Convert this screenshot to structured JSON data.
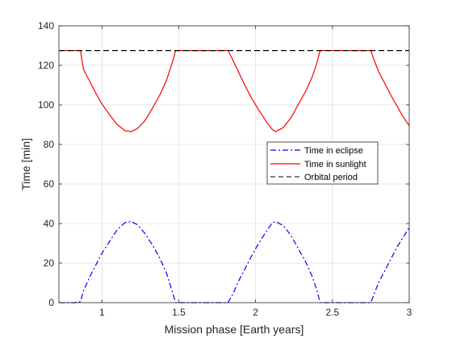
{
  "chart_data": {
    "type": "line",
    "title": "",
    "xlabel": "Mission phase [Earth years]",
    "ylabel": "Time [min]",
    "xlim": [
      0.72,
      3.0
    ],
    "ylim": [
      0,
      140
    ],
    "xticks": [
      "1",
      "1.5",
      "2",
      "2.5",
      "3"
    ],
    "yticks": [
      "0",
      "20",
      "40",
      "60",
      "80",
      "100",
      "120",
      "140"
    ],
    "grid": true,
    "legend_position": "right-middle",
    "series": [
      {
        "name": "Time in eclipse",
        "color": "#0000ff",
        "style": "dash-dot",
        "points": [
          [
            0.72,
            0
          ],
          [
            0.82,
            0
          ],
          [
            0.86,
            0.5
          ],
          [
            0.88,
            6
          ],
          [
            0.92,
            13
          ],
          [
            0.96,
            19
          ],
          [
            1.0,
            25
          ],
          [
            1.05,
            31
          ],
          [
            1.1,
            37
          ],
          [
            1.15,
            40.5
          ],
          [
            1.19,
            41
          ],
          [
            1.23,
            39.5
          ],
          [
            1.28,
            35
          ],
          [
            1.33,
            29
          ],
          [
            1.38,
            22
          ],
          [
            1.42,
            15
          ],
          [
            1.46,
            5
          ],
          [
            1.48,
            0
          ],
          [
            1.5,
            0
          ],
          [
            1.7,
            0
          ],
          [
            1.82,
            0
          ],
          [
            1.85,
            4
          ],
          [
            1.89,
            11
          ],
          [
            1.93,
            17
          ],
          [
            1.97,
            23
          ],
          [
            2.02,
            30
          ],
          [
            2.07,
            36
          ],
          [
            2.11,
            40.5
          ],
          [
            2.13,
            41
          ],
          [
            2.18,
            39
          ],
          [
            2.23,
            34
          ],
          [
            2.28,
            27
          ],
          [
            2.33,
            20
          ],
          [
            2.37,
            13
          ],
          [
            2.4,
            6
          ],
          [
            2.42,
            0
          ],
          [
            2.75,
            0
          ],
          [
            2.77,
            4
          ],
          [
            2.8,
            10
          ],
          [
            2.84,
            16
          ],
          [
            2.88,
            22
          ],
          [
            2.92,
            28
          ],
          [
            2.96,
            33
          ],
          [
            3.0,
            38
          ]
        ]
      },
      {
        "name": "Time in sunlight",
        "color": "#ff0000",
        "style": "solid",
        "points": [
          [
            0.72,
            127.5
          ],
          [
            0.86,
            127.5
          ],
          [
            0.88,
            118
          ],
          [
            0.92,
            112
          ],
          [
            0.96,
            106
          ],
          [
            1.0,
            100.5
          ],
          [
            1.05,
            95
          ],
          [
            1.1,
            90
          ],
          [
            1.15,
            87
          ],
          [
            1.19,
            86.5
          ],
          [
            1.23,
            88
          ],
          [
            1.28,
            92
          ],
          [
            1.33,
            98.5
          ],
          [
            1.38,
            105.5
          ],
          [
            1.42,
            112.5
          ],
          [
            1.46,
            122
          ],
          [
            1.48,
            127.5
          ],
          [
            1.82,
            127.5
          ],
          [
            1.85,
            123
          ],
          [
            1.89,
            116.5
          ],
          [
            1.93,
            110
          ],
          [
            1.97,
            104
          ],
          [
            2.02,
            97.5
          ],
          [
            2.07,
            91.5
          ],
          [
            2.11,
            87.5
          ],
          [
            2.13,
            86.5
          ],
          [
            2.18,
            88.5
          ],
          [
            2.23,
            93.5
          ],
          [
            2.28,
            100.5
          ],
          [
            2.33,
            107.5
          ],
          [
            2.37,
            114.5
          ],
          [
            2.4,
            121.5
          ],
          [
            2.42,
            127.5
          ],
          [
            2.75,
            127.5
          ],
          [
            2.77,
            123
          ],
          [
            2.8,
            117
          ],
          [
            2.84,
            111
          ],
          [
            2.88,
            105
          ],
          [
            2.92,
            99.5
          ],
          [
            2.96,
            94
          ],
          [
            3.0,
            89.5
          ]
        ]
      },
      {
        "name": "Orbital period",
        "color": "#000000",
        "style": "dashed",
        "points": [
          [
            0.72,
            127.5
          ],
          [
            3.0,
            127.5
          ]
        ]
      }
    ]
  }
}
